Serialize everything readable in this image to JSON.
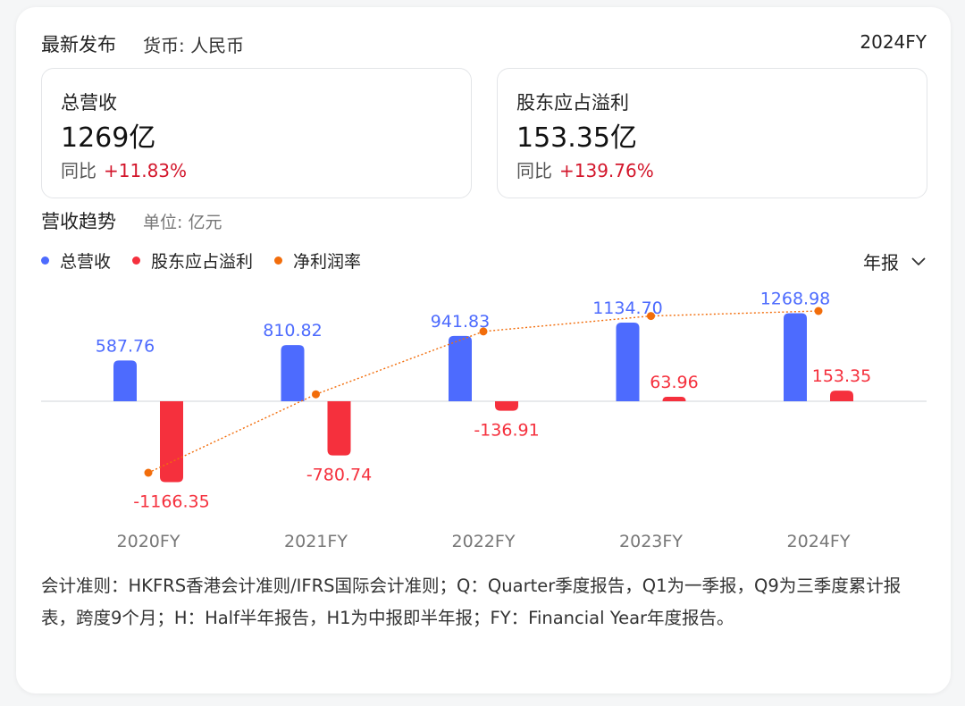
{
  "header": {
    "title": "最新发布",
    "currency": "货币: 人民币",
    "period": "2024FY"
  },
  "metrics": [
    {
      "label": "总营收",
      "value": "1269亿",
      "yoy_label": "同比",
      "yoy_change": "+11.83%"
    },
    {
      "label": "股东应占溢利",
      "value": "153.35亿",
      "yoy_label": "同比",
      "yoy_change": "+139.76%"
    }
  ],
  "trend": {
    "title": "营收趋势",
    "unit": "单位: 亿元",
    "period_select": "年报"
  },
  "legend": [
    {
      "label": "总营收",
      "color": "#4d6bfe"
    },
    {
      "label": "股东应占溢利",
      "color": "#f5303d"
    },
    {
      "label": "净利润率",
      "color": "#f26d0b"
    }
  ],
  "chart_data": {
    "type": "bar",
    "categories": [
      "2020FY",
      "2021FY",
      "2022FY",
      "2023FY",
      "2024FY"
    ],
    "series": [
      {
        "name": "总营收",
        "kind": "bar",
        "color": "#4d6bfe",
        "values": [
          587.76,
          810.82,
          941.83,
          1134.7,
          1268.98
        ],
        "labels": [
          "587.76",
          "810.82",
          "941.83",
          "1134.70",
          "1268.98"
        ]
      },
      {
        "name": "股东应占溢利",
        "kind": "bar",
        "color": "#f5303d",
        "values": [
          -1166.35,
          -780.74,
          -136.91,
          63.96,
          153.35
        ],
        "labels": [
          "-1166.35",
          "-780.74",
          "-136.91",
          "63.96",
          "153.35"
        ]
      },
      {
        "name": "净利润率",
        "kind": "line",
        "color": "#f26d0b",
        "values": [
          -198.4,
          -96.3,
          -14.5,
          5.6,
          12.1
        ]
      }
    ]
  },
  "footnote": "会计准则：HKFRS香港会计准则/IFRS国际会计准则；Q：Quarter季度报告，Q1为一季报，Q9为三季度累计报表，跨度9个月；H：Half半年报告，H1为中报即半年报；FY：Financial Year年度报告。"
}
